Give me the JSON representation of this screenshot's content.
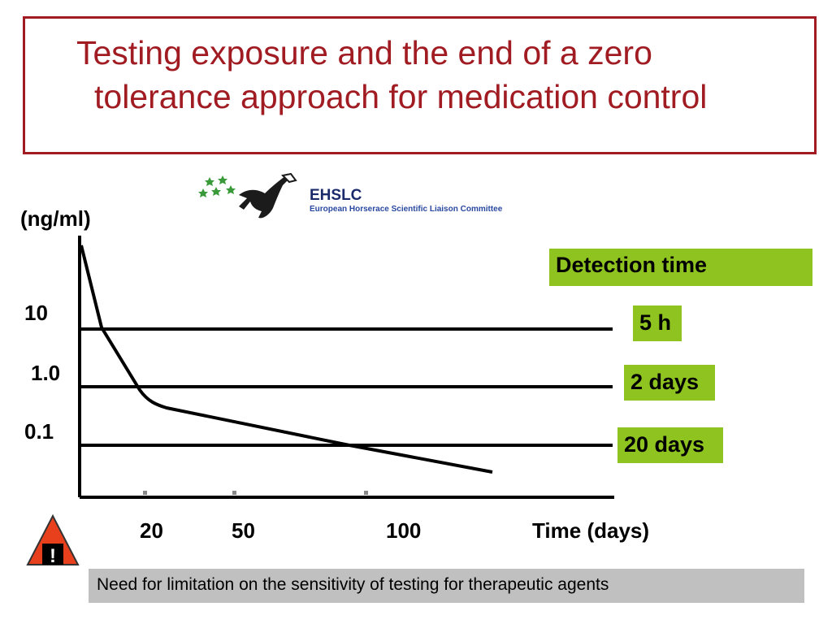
{
  "slide": {
    "title_line1": "Testing exposure and the end of a zero",
    "title_line2": "tolerance approach for medication control",
    "accent_color": "#a01c22"
  },
  "logo": {
    "name": "EHSLC",
    "subtitle": "European Horserace Scientific Liaison Committee"
  },
  "chart_data": {
    "type": "line",
    "y_unit": "(ng/ml)",
    "y_scale": "log",
    "y_ticks": [
      "10",
      "1.0",
      "0.1"
    ],
    "x_ticks": [
      "20",
      "50",
      "100"
    ],
    "xlabel": "Time (days)",
    "threshold_lines": [
      {
        "level": "10",
        "detection_time": "5 h"
      },
      {
        "level": "1.0",
        "detection_time": "2 days"
      },
      {
        "level": "0.1",
        "detection_time": "20 days"
      }
    ],
    "legend_header": "Detection time",
    "highlight_color": "#8fc31f"
  },
  "footer": {
    "warning_symbol": "!",
    "warning_icon": "warning-triangle-icon",
    "note": "Need for limitation on the sensitivity of testing for therapeutic agents"
  }
}
